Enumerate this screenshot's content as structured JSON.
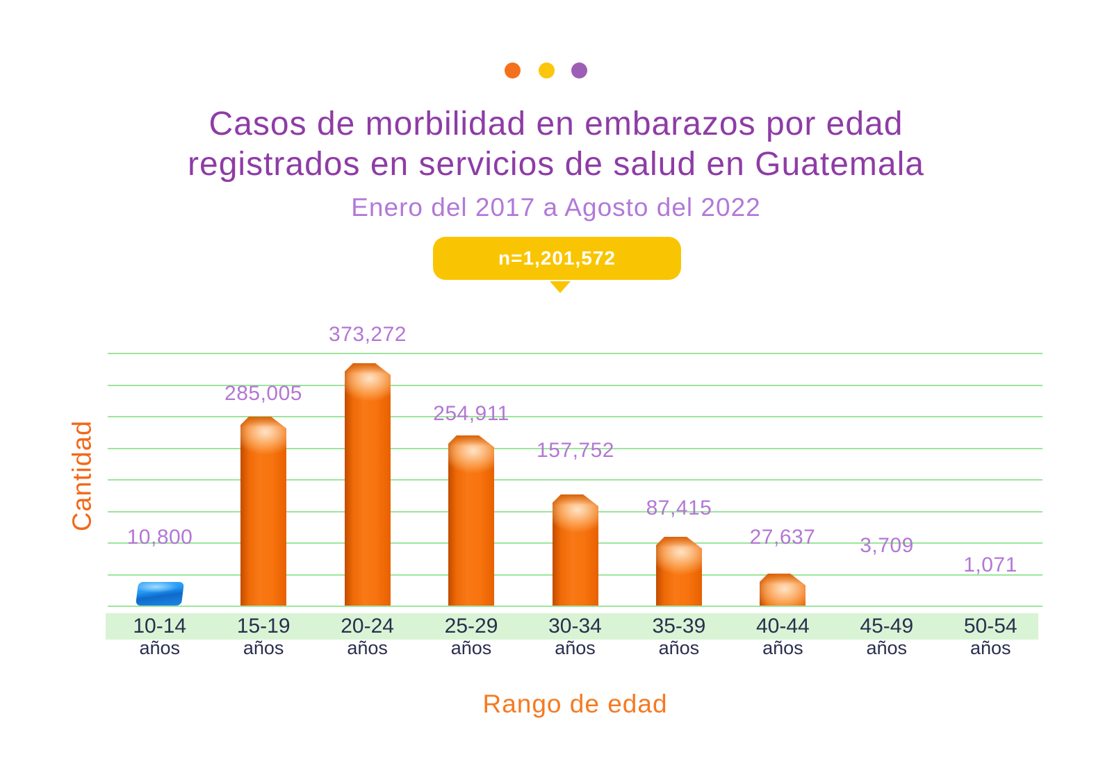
{
  "decorative_dots": [
    {
      "name": "orange-dot",
      "color": "#f4711c"
    },
    {
      "name": "yellow-dot",
      "color": "#fcc60b"
    },
    {
      "name": "purple-dot",
      "color": "#9c5fb5"
    }
  ],
  "header": {
    "title_line1": "Casos de morbilidad en embarazos por edad",
    "title_line2": "registrados en servicios de salud en Guatemala",
    "subtitle": "Enero del 2017 a Agosto del 2022",
    "sample_badge": "n=1,201,572"
  },
  "chart_data": {
    "type": "bar",
    "title": "Casos de morbilidad en embarazos por edad registrados en servicios de salud en Guatemala",
    "subtitle": "Enero del 2017 a Agosto del 2022",
    "sample_size_note": "n=1,201,572",
    "xlabel": "Rango de edad",
    "ylabel": "Cantidad",
    "grid": "horizontal light-green gridlines, no y tick labels",
    "legend": "none",
    "categories": [
      "10-14 años",
      "15-19 años",
      "20-24 años",
      "25-29 años",
      "30-34 años",
      "35-39 años",
      "40-44 años",
      "45-49 años",
      "50-54 años"
    ],
    "values": [
      10800,
      285005,
      373272,
      254911,
      157752,
      87415,
      27637,
      3709,
      1071
    ],
    "bars": [
      {
        "range": "10-14",
        "unit": "años",
        "value": 10800,
        "label": "10,800",
        "accent": true
      },
      {
        "range": "15-19",
        "unit": "años",
        "value": 285005,
        "label": "285,005",
        "accent": false
      },
      {
        "range": "20-24",
        "unit": "años",
        "value": 373272,
        "label": "373,272",
        "accent": false
      },
      {
        "range": "25-29",
        "unit": "años",
        "value": 254911,
        "label": "254,911",
        "accent": false
      },
      {
        "range": "30-34",
        "unit": "años",
        "value": 157752,
        "label": "157,752",
        "accent": false
      },
      {
        "range": "35-39",
        "unit": "años",
        "value": 87415,
        "label": "87,415",
        "accent": false
      },
      {
        "range": "40-44",
        "unit": "años",
        "value": 27637,
        "label": "27,637",
        "accent": false
      },
      {
        "range": "45-49",
        "unit": "años",
        "value": 3709,
        "label": "3,709",
        "accent": false
      },
      {
        "range": "50-54",
        "unit": "años",
        "value": 1071,
        "label": "1,071",
        "accent": false
      }
    ],
    "colors": {
      "bar_default": "#f5740e",
      "bar_accent": "#2196f3",
      "value_label": "#b377d4",
      "axis_title": "#f2691a",
      "tick_label": "#2a2e4e",
      "gridline": "#9ce59c",
      "axis_band": "#d9f4d5",
      "title": "#8e3ca6",
      "subtitle": "#b179d8",
      "badge": "#f9c502"
    }
  }
}
